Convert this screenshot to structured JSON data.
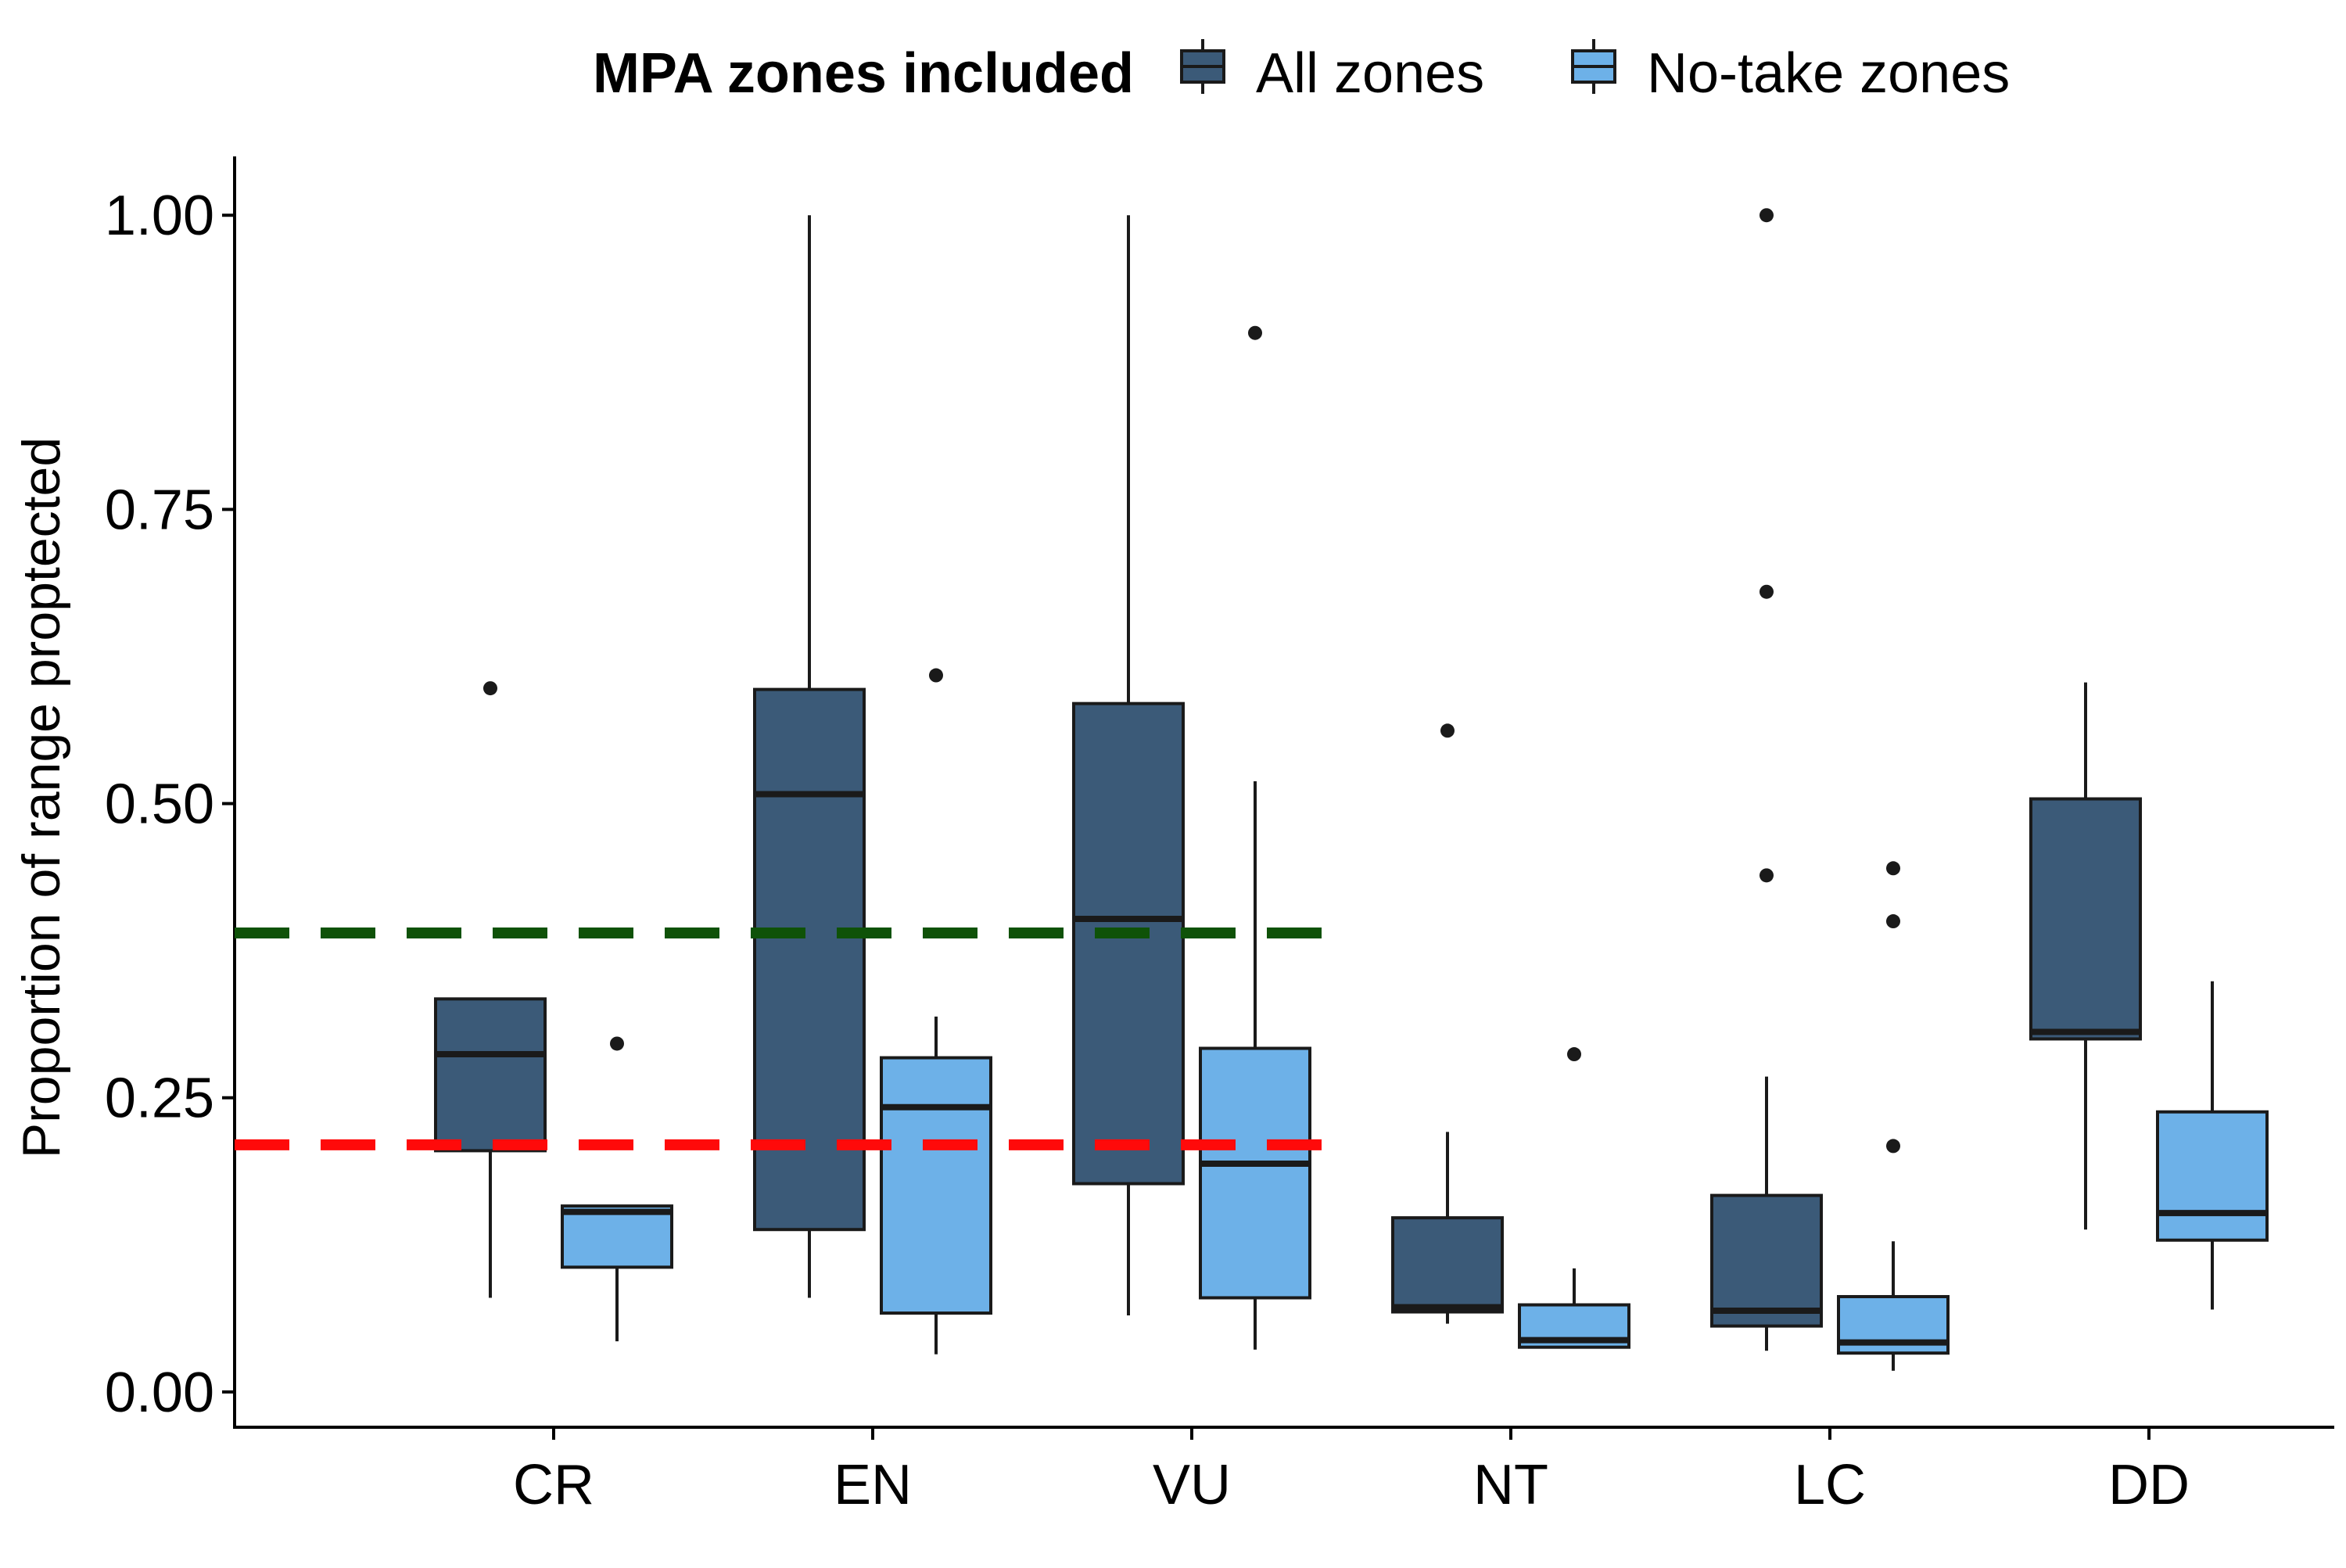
{
  "legend": {
    "title": "MPA zones included",
    "items": [
      "All zones",
      "No-take zones"
    ]
  },
  "colors": {
    "all_zones": "#3b5a78",
    "no_take": "#6db1e8",
    "green_line": "#0f5208",
    "red_line": "#ff0a0a"
  },
  "chart_data": {
    "type": "box",
    "ylabel": "Proportion of range proptected",
    "xlabel": "",
    "ylim": [
      -0.03,
      1.05
    ],
    "yticks": [
      0.0,
      0.25,
      0.5,
      0.75,
      1.0
    ],
    "ytick_labels": [
      "0.00",
      "0.25",
      "0.50",
      "0.75",
      "1.00"
    ],
    "categories": [
      "CR",
      "EN",
      "VU",
      "NT",
      "LC",
      "DD"
    ],
    "series": [
      {
        "name": "All zones",
        "boxes": [
          {
            "category": "CR",
            "whisker_low": 0.08,
            "q1": 0.205,
            "median": 0.287,
            "q3": 0.334,
            "whisker_high": 0.334,
            "outliers": [
              0.598
            ]
          },
          {
            "category": "EN",
            "whisker_low": 0.08,
            "q1": 0.138,
            "median": 0.508,
            "q3": 0.597,
            "whisker_high": 1.0,
            "outliers": []
          },
          {
            "category": "VU",
            "whisker_low": 0.065,
            "q1": 0.177,
            "median": 0.402,
            "q3": 0.585,
            "whisker_high": 1.0,
            "outliers": []
          },
          {
            "category": "NT",
            "whisker_low": 0.058,
            "q1": 0.068,
            "median": 0.072,
            "q3": 0.148,
            "whisker_high": 0.221,
            "outliers": [
              0.562
            ]
          },
          {
            "category": "LC",
            "whisker_low": 0.035,
            "q1": 0.056,
            "median": 0.069,
            "q3": 0.167,
            "whisker_high": 0.268,
            "outliers": [
              0.439,
              0.68,
              1.0
            ]
          },
          {
            "category": "DD",
            "whisker_low": 0.138,
            "q1": 0.3,
            "median": 0.306,
            "q3": 0.504,
            "whisker_high": 0.603,
            "outliers": []
          }
        ]
      },
      {
        "name": "No-take zones",
        "boxes": [
          {
            "category": "CR",
            "whisker_low": 0.043,
            "q1": 0.106,
            "median": 0.153,
            "q3": 0.158,
            "whisker_high": 0.158,
            "outliers": [
              0.296
            ]
          },
          {
            "category": "EN",
            "whisker_low": 0.032,
            "q1": 0.067,
            "median": 0.242,
            "q3": 0.284,
            "whisker_high": 0.319,
            "outliers": [
              0.609
            ]
          },
          {
            "category": "VU",
            "whisker_low": 0.036,
            "q1": 0.08,
            "median": 0.194,
            "q3": 0.292,
            "whisker_high": 0.519,
            "outliers": [
              0.9
            ]
          },
          {
            "category": "NT",
            "whisker_low": 0.037,
            "q1": 0.038,
            "median": 0.044,
            "q3": 0.074,
            "whisker_high": 0.105,
            "outliers": [
              0.287
            ]
          },
          {
            "category": "LC",
            "whisker_low": 0.018,
            "q1": 0.033,
            "median": 0.042,
            "q3": 0.081,
            "whisker_high": 0.128,
            "outliers": [
              0.209,
              0.4,
              0.445
            ]
          },
          {
            "category": "DD",
            "whisker_low": 0.07,
            "q1": 0.129,
            "median": 0.152,
            "q3": 0.238,
            "whisker_high": 0.349,
            "outliers": []
          }
        ]
      }
    ],
    "reference_lines": [
      {
        "y": 0.39,
        "color": "green",
        "style": "dashed",
        "x_extent": [
          "start",
          "VU"
        ]
      },
      {
        "y": 0.21,
        "color": "red",
        "style": "dashed",
        "x_extent": [
          "start",
          "VU"
        ]
      }
    ],
    "grid": false,
    "legend_position": "top"
  }
}
